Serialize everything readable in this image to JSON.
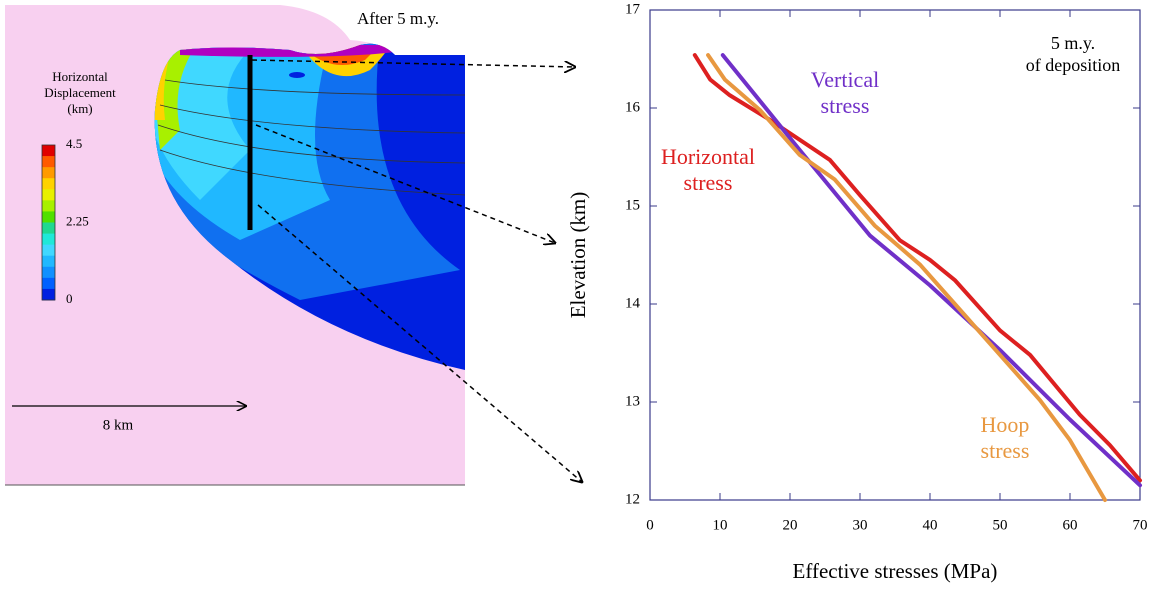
{
  "figure": {
    "title": "After 5 m.y.",
    "colorbar": {
      "title": [
        "Horizontal",
        "Displacement",
        "(km)"
      ],
      "lim": [
        0,
        4.5
      ],
      "ticks": [
        4.5,
        2.25,
        0
      ],
      "colors": [
        "#e00000",
        "#ff5a00",
        "#ff9a00",
        "#ffd200",
        "#e8f000",
        "#a8f000",
        "#50e000",
        "#20d890",
        "#20e8d8",
        "#40d8ff",
        "#20b8ff",
        "#1090ff",
        "#0060ff",
        "#0020e0"
      ]
    },
    "scale_label": "8 km"
  },
  "chart_data": {
    "type": "line",
    "xlabel": "Effective stresses (MPa)",
    "ylabel": "Elevation (km)",
    "annotation": "5 m.y. of deposition",
    "xlim": [
      0,
      70
    ],
    "xticks": [
      0,
      10,
      20,
      30,
      40,
      50,
      60,
      70
    ],
    "ylim": [
      12,
      17
    ],
    "yticks": [
      12,
      13,
      14,
      15,
      16,
      17
    ],
    "series": [
      {
        "name": "Horizontal stress",
        "color": "#dd2020",
        "x": [
          6.4,
          8.6,
          11.4,
          17.1,
          25.7,
          30,
          35.7,
          40,
          43.6,
          50,
          54.3,
          61.4,
          65.7,
          70
        ],
        "values": [
          16.54,
          16.29,
          16.13,
          15.88,
          15.47,
          15.11,
          14.65,
          14.45,
          14.24,
          13.73,
          13.48,
          12.87,
          12.56,
          12.2
        ]
      },
      {
        "name": "Vertical stress",
        "color": "#7030c8",
        "x": [
          10.4,
          21.4,
          31.4,
          40,
          50,
          60,
          70
        ],
        "values": [
          16.54,
          15.57,
          14.7,
          14.19,
          13.53,
          12.82,
          12.15
        ]
      },
      {
        "name": "Hoop stress",
        "color": "#e89840",
        "x": [
          8.3,
          10.7,
          15.7,
          21.4,
          26.4,
          32.1,
          38.6,
          44.3,
          50,
          55.7,
          60,
          65
        ],
        "values": [
          16.54,
          16.29,
          15.98,
          15.52,
          15.27,
          14.8,
          14.4,
          13.94,
          13.48,
          13.02,
          12.61,
          12
        ]
      }
    ]
  }
}
